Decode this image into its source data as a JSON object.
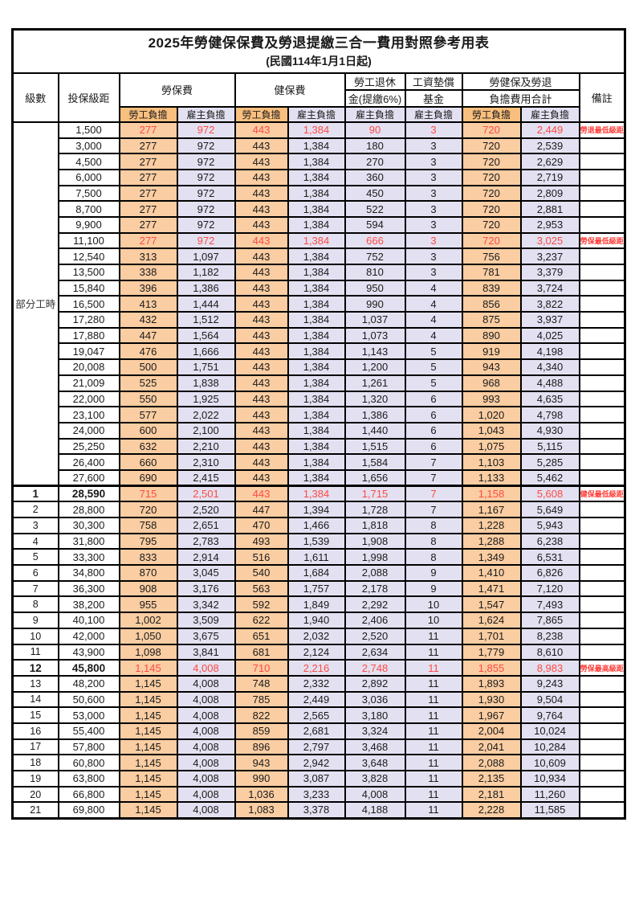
{
  "title": "2025年勞健保保費及勞退提繳三合一費用對照參考用表",
  "subtitle": "(民國114年1月1日起)",
  "columns": {
    "level": "級數",
    "bracket": "投保級距",
    "labor_insurance": "勞保費",
    "health_insurance": "健保費",
    "pension_top": "勞工退休",
    "pension_bottom": "金(提繳6%)",
    "wage_fund_top": "工資墊償",
    "wage_fund_bottom": "基金",
    "total_top": "勞健保及勞退",
    "total_bottom": "負擔費用合計",
    "remark": "備註",
    "employee_share": "勞工負擔",
    "employer_share": "雇主負擔"
  },
  "part_time_label": "部分工時",
  "part_time_rowspan": 23,
  "colors": {
    "employee_cell_bg": "#FACDA2",
    "employer_cell_bg": "#E3E1F1",
    "employee_header_bg": "#F9BF7E",
    "highlight_text": "#FF4A44",
    "remark_text": "#FF3B36",
    "border": "#000000"
  },
  "rows": [
    {
      "level": "",
      "bracket": "1,500",
      "values": [
        "277",
        "972",
        "443",
        "1,384",
        "90",
        "3",
        "720",
        "2,449"
      ],
      "remark": "勞退最低級距",
      "highlight": true,
      "emph": false
    },
    {
      "level": "",
      "bracket": "3,000",
      "values": [
        "277",
        "972",
        "443",
        "1,384",
        "180",
        "3",
        "720",
        "2,539"
      ],
      "remark": "",
      "highlight": false,
      "emph": false
    },
    {
      "level": "",
      "bracket": "4,500",
      "values": [
        "277",
        "972",
        "443",
        "1,384",
        "270",
        "3",
        "720",
        "2,629"
      ],
      "remark": "",
      "highlight": false,
      "emph": false
    },
    {
      "level": "",
      "bracket": "6,000",
      "values": [
        "277",
        "972",
        "443",
        "1,384",
        "360",
        "3",
        "720",
        "2,719"
      ],
      "remark": "",
      "highlight": false,
      "emph": false
    },
    {
      "level": "",
      "bracket": "7,500",
      "values": [
        "277",
        "972",
        "443",
        "1,384",
        "450",
        "3",
        "720",
        "2,809"
      ],
      "remark": "",
      "highlight": false,
      "emph": false
    },
    {
      "level": "",
      "bracket": "8,700",
      "values": [
        "277",
        "972",
        "443",
        "1,384",
        "522",
        "3",
        "720",
        "2,881"
      ],
      "remark": "",
      "highlight": false,
      "emph": false
    },
    {
      "level": "",
      "bracket": "9,900",
      "values": [
        "277",
        "972",
        "443",
        "1,384",
        "594",
        "3",
        "720",
        "2,953"
      ],
      "remark": "",
      "highlight": false,
      "emph": false
    },
    {
      "level": "",
      "bracket": "11,100",
      "values": [
        "277",
        "972",
        "443",
        "1,384",
        "666",
        "3",
        "720",
        "3,025"
      ],
      "remark": "勞保最低級距",
      "highlight": true,
      "emph": false
    },
    {
      "level": "",
      "bracket": "12,540",
      "values": [
        "313",
        "1,097",
        "443",
        "1,384",
        "752",
        "3",
        "756",
        "3,237"
      ],
      "remark": "",
      "highlight": false,
      "emph": false
    },
    {
      "level": "",
      "bracket": "13,500",
      "values": [
        "338",
        "1,182",
        "443",
        "1,384",
        "810",
        "3",
        "781",
        "3,379"
      ],
      "remark": "",
      "highlight": false,
      "emph": false
    },
    {
      "level": "",
      "bracket": "15,840",
      "values": [
        "396",
        "1,386",
        "443",
        "1,384",
        "950",
        "4",
        "839",
        "3,724"
      ],
      "remark": "",
      "highlight": false,
      "emph": false
    },
    {
      "level": "",
      "bracket": "16,500",
      "values": [
        "413",
        "1,444",
        "443",
        "1,384",
        "990",
        "4",
        "856",
        "3,822"
      ],
      "remark": "",
      "highlight": false,
      "emph": false
    },
    {
      "level": "",
      "bracket": "17,280",
      "values": [
        "432",
        "1,512",
        "443",
        "1,384",
        "1,037",
        "4",
        "875",
        "3,937"
      ],
      "remark": "",
      "highlight": false,
      "emph": false
    },
    {
      "level": "",
      "bracket": "17,880",
      "values": [
        "447",
        "1,564",
        "443",
        "1,384",
        "1,073",
        "4",
        "890",
        "4,025"
      ],
      "remark": "",
      "highlight": false,
      "emph": false
    },
    {
      "level": "",
      "bracket": "19,047",
      "values": [
        "476",
        "1,666",
        "443",
        "1,384",
        "1,143",
        "5",
        "919",
        "4,198"
      ],
      "remark": "",
      "highlight": false,
      "emph": false
    },
    {
      "level": "",
      "bracket": "20,008",
      "values": [
        "500",
        "1,751",
        "443",
        "1,384",
        "1,200",
        "5",
        "943",
        "4,340"
      ],
      "remark": "",
      "highlight": false,
      "emph": false
    },
    {
      "level": "",
      "bracket": "21,009",
      "values": [
        "525",
        "1,838",
        "443",
        "1,384",
        "1,261",
        "5",
        "968",
        "4,488"
      ],
      "remark": "",
      "highlight": false,
      "emph": false
    },
    {
      "level": "",
      "bracket": "22,000",
      "values": [
        "550",
        "1,925",
        "443",
        "1,384",
        "1,320",
        "6",
        "993",
        "4,635"
      ],
      "remark": "",
      "highlight": false,
      "emph": false
    },
    {
      "level": "",
      "bracket": "23,100",
      "values": [
        "577",
        "2,022",
        "443",
        "1,384",
        "1,386",
        "6",
        "1,020",
        "4,798"
      ],
      "remark": "",
      "highlight": false,
      "emph": false
    },
    {
      "level": "",
      "bracket": "24,000",
      "values": [
        "600",
        "2,100",
        "443",
        "1,384",
        "1,440",
        "6",
        "1,043",
        "4,930"
      ],
      "remark": "",
      "highlight": false,
      "emph": false
    },
    {
      "level": "",
      "bracket": "25,250",
      "values": [
        "632",
        "2,210",
        "443",
        "1,384",
        "1,515",
        "6",
        "1,075",
        "5,115"
      ],
      "remark": "",
      "highlight": false,
      "emph": false
    },
    {
      "level": "",
      "bracket": "26,400",
      "values": [
        "660",
        "2,310",
        "443",
        "1,384",
        "1,584",
        "7",
        "1,103",
        "5,285"
      ],
      "remark": "",
      "highlight": false,
      "emph": false
    },
    {
      "level": "",
      "bracket": "27,600",
      "values": [
        "690",
        "2,415",
        "443",
        "1,384",
        "1,656",
        "7",
        "1,133",
        "5,462"
      ],
      "remark": "",
      "highlight": false,
      "emph": false
    },
    {
      "level": "1",
      "bracket": "28,590",
      "values": [
        "715",
        "2,501",
        "443",
        "1,384",
        "1,715",
        "7",
        "1,158",
        "5,608"
      ],
      "remark": "健保最低級距",
      "highlight": true,
      "emph": true
    },
    {
      "level": "2",
      "bracket": "28,800",
      "values": [
        "720",
        "2,520",
        "447",
        "1,394",
        "1,728",
        "7",
        "1,167",
        "5,649"
      ],
      "remark": "",
      "highlight": false,
      "emph": false
    },
    {
      "level": "3",
      "bracket": "30,300",
      "values": [
        "758",
        "2,651",
        "470",
        "1,466",
        "1,818",
        "8",
        "1,228",
        "5,943"
      ],
      "remark": "",
      "highlight": false,
      "emph": false
    },
    {
      "level": "4",
      "bracket": "31,800",
      "values": [
        "795",
        "2,783",
        "493",
        "1,539",
        "1,908",
        "8",
        "1,288",
        "6,238"
      ],
      "remark": "",
      "highlight": false,
      "emph": false
    },
    {
      "level": "5",
      "bracket": "33,300",
      "values": [
        "833",
        "2,914",
        "516",
        "1,611",
        "1,998",
        "8",
        "1,349",
        "6,531"
      ],
      "remark": "",
      "highlight": false,
      "emph": false
    },
    {
      "level": "6",
      "bracket": "34,800",
      "values": [
        "870",
        "3,045",
        "540",
        "1,684",
        "2,088",
        "9",
        "1,410",
        "6,826"
      ],
      "remark": "",
      "highlight": false,
      "emph": false
    },
    {
      "level": "7",
      "bracket": "36,300",
      "values": [
        "908",
        "3,176",
        "563",
        "1,757",
        "2,178",
        "9",
        "1,471",
        "7,120"
      ],
      "remark": "",
      "highlight": false,
      "emph": false
    },
    {
      "level": "8",
      "bracket": "38,200",
      "values": [
        "955",
        "3,342",
        "592",
        "1,849",
        "2,292",
        "10",
        "1,547",
        "7,493"
      ],
      "remark": "",
      "highlight": false,
      "emph": false
    },
    {
      "level": "9",
      "bracket": "40,100",
      "values": [
        "1,002",
        "3,509",
        "622",
        "1,940",
        "2,406",
        "10",
        "1,624",
        "7,865"
      ],
      "remark": "",
      "highlight": false,
      "emph": false
    },
    {
      "level": "10",
      "bracket": "42,000",
      "values": [
        "1,050",
        "3,675",
        "651",
        "2,032",
        "2,520",
        "11",
        "1,701",
        "8,238"
      ],
      "remark": "",
      "highlight": false,
      "emph": false
    },
    {
      "level": "11",
      "bracket": "43,900",
      "values": [
        "1,098",
        "3,841",
        "681",
        "2,124",
        "2,634",
        "11",
        "1,779",
        "8,610"
      ],
      "remark": "",
      "highlight": false,
      "emph": false
    },
    {
      "level": "12",
      "bracket": "45,800",
      "values": [
        "1,145",
        "4,008",
        "710",
        "2,216",
        "2,748",
        "11",
        "1,855",
        "8,983"
      ],
      "remark": "勞保最高級距",
      "highlight": true,
      "emph": true
    },
    {
      "level": "13",
      "bracket": "48,200",
      "values": [
        "1,145",
        "4,008",
        "748",
        "2,332",
        "2,892",
        "11",
        "1,893",
        "9,243"
      ],
      "remark": "",
      "highlight": false,
      "emph": false
    },
    {
      "level": "14",
      "bracket": "50,600",
      "values": [
        "1,145",
        "4,008",
        "785",
        "2,449",
        "3,036",
        "11",
        "1,930",
        "9,504"
      ],
      "remark": "",
      "highlight": false,
      "emph": false
    },
    {
      "level": "15",
      "bracket": "53,000",
      "values": [
        "1,145",
        "4,008",
        "822",
        "2,565",
        "3,180",
        "11",
        "1,967",
        "9,764"
      ],
      "remark": "",
      "highlight": false,
      "emph": false
    },
    {
      "level": "16",
      "bracket": "55,400",
      "values": [
        "1,145",
        "4,008",
        "859",
        "2,681",
        "3,324",
        "11",
        "2,004",
        "10,024"
      ],
      "remark": "",
      "highlight": false,
      "emph": false
    },
    {
      "level": "17",
      "bracket": "57,800",
      "values": [
        "1,145",
        "4,008",
        "896",
        "2,797",
        "3,468",
        "11",
        "2,041",
        "10,284"
      ],
      "remark": "",
      "highlight": false,
      "emph": false
    },
    {
      "level": "18",
      "bracket": "60,800",
      "values": [
        "1,145",
        "4,008",
        "943",
        "2,942",
        "3,648",
        "11",
        "2,088",
        "10,609"
      ],
      "remark": "",
      "highlight": false,
      "emph": false
    },
    {
      "level": "19",
      "bracket": "63,800",
      "values": [
        "1,145",
        "4,008",
        "990",
        "3,087",
        "3,828",
        "11",
        "2,135",
        "10,934"
      ],
      "remark": "",
      "highlight": false,
      "emph": false
    },
    {
      "level": "20",
      "bracket": "66,800",
      "values": [
        "1,145",
        "4,008",
        "1,036",
        "3,233",
        "4,008",
        "11",
        "2,181",
        "11,260"
      ],
      "remark": "",
      "highlight": false,
      "emph": false
    },
    {
      "level": "21",
      "bracket": "69,800",
      "values": [
        "1,145",
        "4,008",
        "1,083",
        "3,378",
        "4,188",
        "11",
        "2,228",
        "11,585"
      ],
      "remark": "",
      "highlight": false,
      "emph": false
    }
  ]
}
